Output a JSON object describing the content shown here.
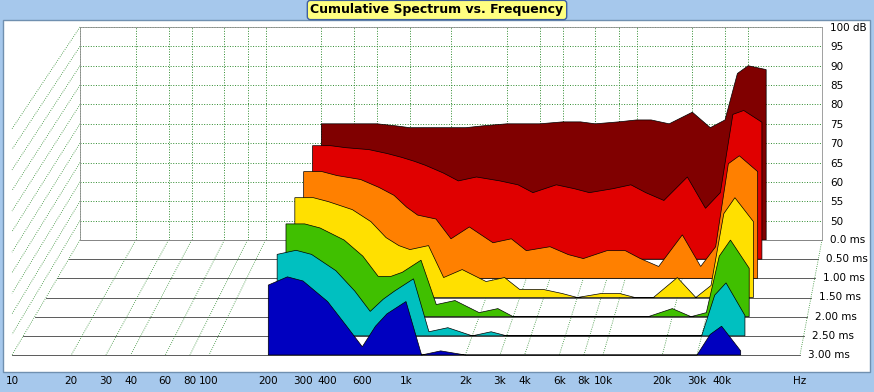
{
  "chart_data": {
    "type": "waterfall",
    "title": "Cumulative Spectrum vs. Frequency",
    "xlabel": "Hz",
    "log": "x",
    "grid": true,
    "xlim": [
      10,
      100000
    ],
    "xticks": [
      10,
      20,
      30,
      40,
      60,
      80,
      100,
      200,
      300,
      400,
      600,
      {
        "value": 1000,
        "label": "1k"
      },
      {
        "value": 2000,
        "label": "2k"
      },
      {
        "value": 3000,
        "label": "3k"
      },
      {
        "value": 4000,
        "label": "4k"
      },
      {
        "value": 6000,
        "label": "6k"
      },
      {
        "value": 8000,
        "label": "8k"
      },
      {
        "value": 10000,
        "label": "10k"
      },
      {
        "value": 20000,
        "label": "20k"
      },
      {
        "value": 30000,
        "label": "30k"
      },
      {
        "value": 40000,
        "label": "40k"
      }
    ],
    "ylim": [
      45,
      100
    ],
    "yticks": [
      50,
      55,
      60,
      65,
      70,
      75,
      80,
      85,
      90,
      95,
      {
        "value": 100,
        "label": "100 dB"
      }
    ],
    "zlim": [
      0,
      3
    ],
    "zticks": [
      {
        "value": 0,
        "label": "0.0 ms"
      },
      {
        "value": 0.5,
        "label": "0.50 ms"
      },
      {
        "value": 1.0,
        "label": "1.00 ms"
      },
      {
        "value": 1.5,
        "label": "1.50 ms"
      },
      {
        "value": 2.0,
        "label": "2.00 ms"
      },
      {
        "value": 2.5,
        "label": "2.50 ms"
      },
      {
        "value": 3.0,
        "label": "3.00 ms"
      }
    ],
    "x": [
      200,
      250,
      300,
      400,
      500,
      600,
      700,
      800,
      1000,
      1200,
      1500,
      2000,
      2500,
      3000,
      4000,
      5000,
      6000,
      8000,
      10000,
      12000,
      15000,
      20000,
      25000,
      30000,
      35000,
      40000,
      50000
    ],
    "series": [
      {
        "time": 0.0,
        "color": "#800000",
        "values": [
          75,
          75,
          75,
          75,
          74.5,
          74,
          74,
          74,
          74,
          74,
          74.5,
          75,
          75,
          75,
          75.5,
          75.5,
          75,
          75.5,
          76,
          76,
          75,
          78,
          74,
          76,
          88,
          90,
          89
        ]
      },
      {
        "time": 0.5,
        "color": "#e00000",
        "values": [
          74,
          74,
          73.5,
          73,
          72,
          71,
          70,
          69,
          67,
          65,
          66,
          65,
          64,
          62,
          64,
          63,
          62,
          63,
          64,
          62,
          60,
          66,
          58,
          62,
          82,
          83,
          80
        ]
      },
      {
        "time": 1.0,
        "color": "#ff8000",
        "values": [
          72,
          72,
          71,
          70,
          68,
          66,
          63,
          61,
          60,
          55,
          58,
          54,
          55,
          52,
          53,
          51,
          50,
          52,
          52,
          50,
          48,
          56,
          48,
          53,
          74,
          76,
          72
        ]
      },
      {
        "time": 1.5,
        "color": "#ffe000",
        "values": [
          70,
          70,
          69,
          67,
          64,
          60,
          58,
          57,
          58,
          50,
          52,
          49,
          50,
          47,
          47,
          46,
          45,
          46,
          46,
          45,
          45,
          50,
          45,
          48,
          66,
          70,
          64
        ]
      },
      {
        "time": 2.0,
        "color": "#40c000",
        "values": [
          68,
          68,
          67,
          64,
          60,
          55,
          55,
          56,
          59,
          48,
          49,
          46,
          47,
          45,
          45,
          45,
          45,
          45,
          45,
          45,
          45,
          47,
          45,
          46,
          60,
          64,
          57
        ]
      },
      {
        "time": 2.5,
        "color": "#00c0c0",
        "values": [
          65,
          66,
          65,
          61,
          56,
          51,
          54,
          56,
          59,
          46,
          47,
          45,
          46,
          45,
          45,
          45,
          45,
          45,
          45,
          45,
          45,
          45,
          45,
          45,
          55,
          58,
          50
        ]
      },
      {
        "time": 3.0,
        "color": "#0000c0",
        "values": [
          62,
          64,
          63,
          58,
          52,
          47,
          52,
          55,
          58,
          45,
          46,
          45,
          45,
          45,
          45,
          45,
          45,
          45,
          45,
          45,
          45,
          45,
          45,
          45,
          50,
          52,
          46
        ]
      }
    ]
  }
}
